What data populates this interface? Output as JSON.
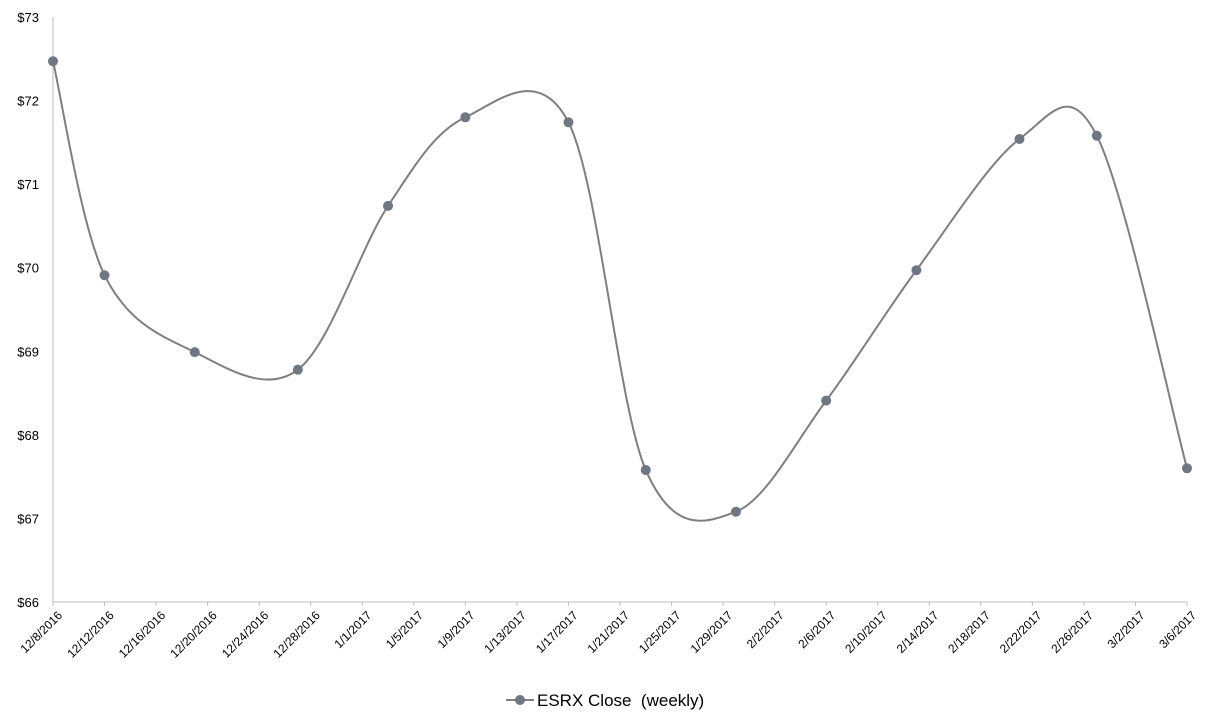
{
  "chart_data": {
    "type": "line",
    "title": "",
    "xlabel": "",
    "ylabel": "",
    "ylim": [
      66,
      73
    ],
    "yticks": [
      66,
      67,
      68,
      69,
      70,
      71,
      72,
      73
    ],
    "y_tick_labels": [
      "$66",
      "$67",
      "$68",
      "$69",
      "$70",
      "$71",
      "$72",
      "$73"
    ],
    "x_range": [
      "12/8/2016",
      "3/6/2017"
    ],
    "x_tick_labels": [
      "12/8/2016",
      "12/12/2016",
      "12/16/2016",
      "12/20/2016",
      "12/24/2016",
      "12/28/2016",
      "1/1/2017",
      "1/5/2017",
      "1/9/2017",
      "1/13/2017",
      "1/17/2017",
      "1/21/2017",
      "1/25/2017",
      "1/29/2017",
      "2/2/2017",
      "2/6/2017",
      "2/10/2017",
      "2/14/2017",
      "2/18/2017",
      "2/22/2017",
      "2/26/2017",
      "3/2/2017",
      "3/6/2017"
    ],
    "grid": false,
    "smooth": true,
    "legend_position": "bottom",
    "series": [
      {
        "name": "ESRX Close  (weekly)",
        "color": "#7f7f7f",
        "marker_color": "#6e7782",
        "x": [
          "12/8/2016",
          "12/12/2016",
          "12/19/2016",
          "12/27/2016",
          "1/3/2017",
          "1/9/2017",
          "1/17/2017",
          "1/23/2017",
          "1/30/2017",
          "2/6/2017",
          "2/13/2017",
          "2/21/2017",
          "2/27/2017",
          "3/6/2017"
        ],
        "values": [
          72.47,
          69.91,
          68.99,
          68.78,
          70.74,
          71.8,
          71.74,
          67.58,
          67.08,
          68.41,
          69.97,
          71.54,
          71.58,
          67.6
        ]
      }
    ]
  }
}
